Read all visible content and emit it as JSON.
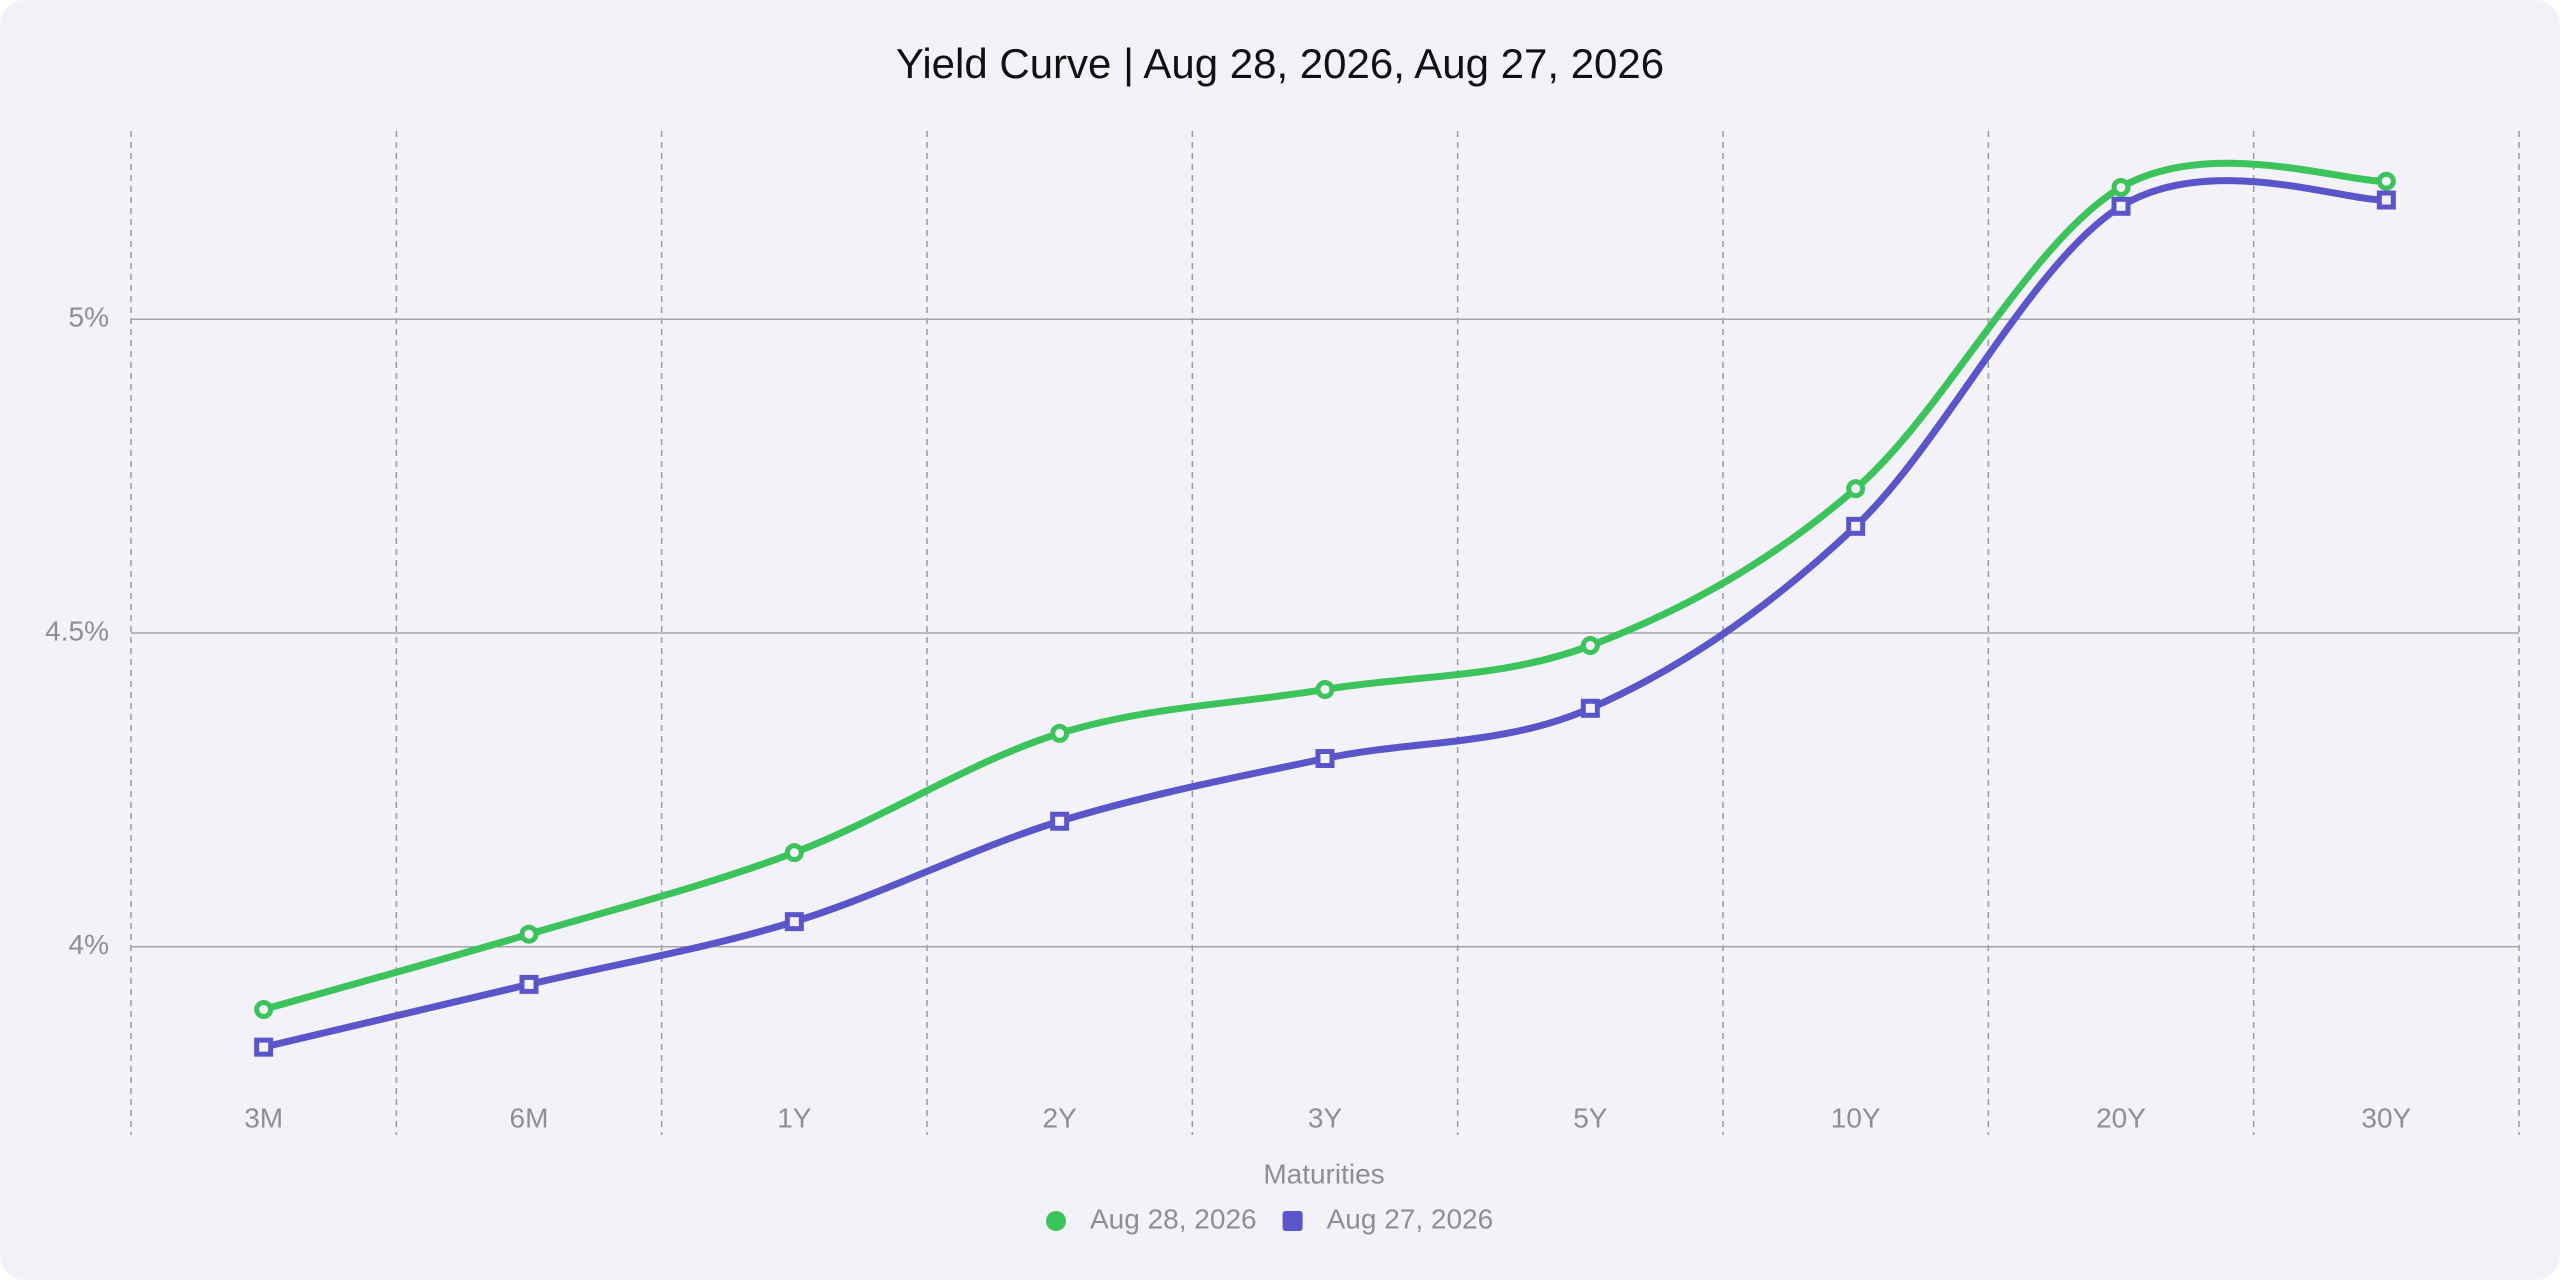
{
  "chart_data": {
    "type": "line",
    "title": "Yield Curve | Aug 28, 2026, Aug 27, 2026",
    "x_label": "Maturities",
    "categories": [
      "3M",
      "6M",
      "1Y",
      "2Y",
      "3Y",
      "5Y",
      "10Y",
      "20Y",
      "30Y"
    ],
    "series": [
      {
        "name": "Aug 28, 2026",
        "color": "#3cc35c",
        "marker": "circle",
        "values": [
          3.9,
          4.02,
          4.15,
          4.34,
          4.41,
          4.48,
          4.73,
          5.21,
          5.22
        ]
      },
      {
        "name": "Aug 27, 2026",
        "color": "#5a55c8",
        "marker": "square",
        "values": [
          3.84,
          3.94,
          4.04,
          4.2,
          4.3,
          4.38,
          4.67,
          5.18,
          5.19
        ]
      }
    ],
    "ylim": [
      3.7,
      5.3
    ],
    "yticks": [
      {
        "value": 4,
        "label": "4%"
      },
      {
        "value": 4.5,
        "label": "4.5%"
      },
      {
        "value": 5,
        "label": "5%"
      }
    ],
    "grid": true,
    "legend": "bottom"
  }
}
